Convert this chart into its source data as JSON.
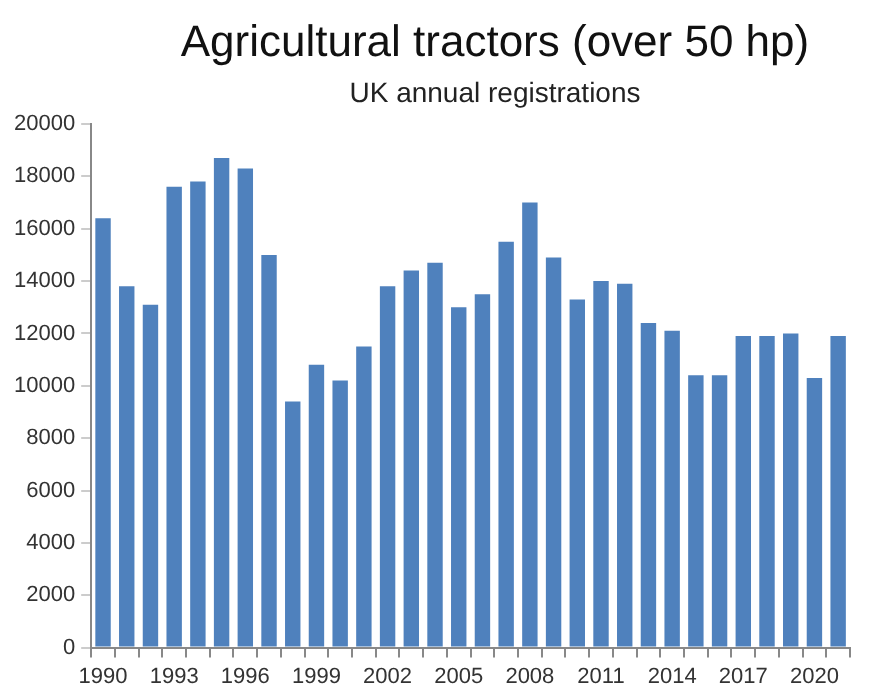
{
  "chart_data": {
    "type": "bar",
    "title": "Agricultural tractors (over 50 hp)",
    "subtitle": "UK annual registrations",
    "categories": [
      "1990",
      null,
      null,
      "1993",
      null,
      null,
      "1996",
      null,
      null,
      "1999",
      null,
      null,
      "2002",
      null,
      null,
      "2005",
      null,
      null,
      "2008",
      null,
      null,
      "2011",
      null,
      null,
      "2014",
      null,
      null,
      "2017",
      null,
      null,
      "2020",
      null
    ],
    "values": [
      16400,
      13800,
      13100,
      17600,
      17800,
      18700,
      18300,
      15000,
      9400,
      10800,
      10200,
      11500,
      13800,
      14400,
      14700,
      13000,
      13500,
      15500,
      17000,
      14900,
      13300,
      14000,
      13900,
      12400,
      12100,
      10400,
      10400,
      11900,
      11900,
      12000,
      10300,
      11900
    ],
    "color": "#4f81bd",
    "ylim": [
      0,
      20000
    ],
    "yticks": [
      0,
      2000,
      4000,
      6000,
      8000,
      10000,
      12000,
      14000,
      16000,
      18000,
      20000
    ],
    "grid": false
  }
}
